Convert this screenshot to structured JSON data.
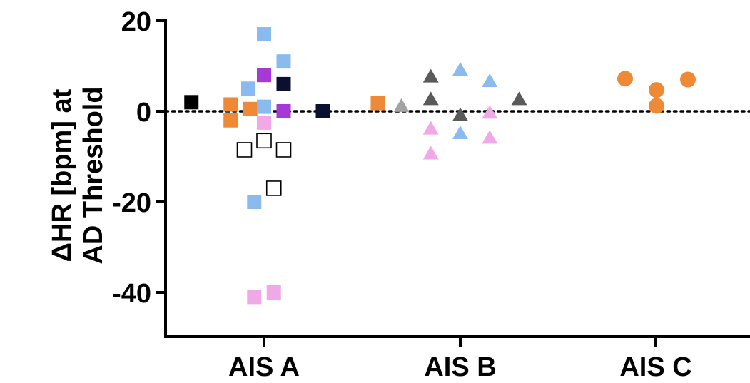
{
  "chart_data": {
    "type": "scatter",
    "title": "",
    "ylabel_lines": [
      "ΔHR [bpm] at",
      "AD Threshold"
    ],
    "xlabel": "",
    "categories": [
      "AIS A",
      "AIS B",
      "AIS C"
    ],
    "ylim": [
      -50,
      20
    ],
    "yticks": [
      20,
      0,
      -20,
      -40
    ],
    "ytick_labels": [
      "20",
      "0",
      "-20",
      "-40"
    ],
    "reference_line": {
      "y": 0,
      "style": "dotted"
    },
    "grid": false,
    "legend": "none",
    "points": [
      {
        "x": 0.63,
        "y": 2,
        "shape": "square",
        "fill": "#000000",
        "stroke": "#000000"
      },
      {
        "x": 0.83,
        "y": 1.5,
        "shape": "square",
        "fill": "#ee8a36",
        "stroke": "#ee8a36"
      },
      {
        "x": 0.83,
        "y": -2,
        "shape": "square",
        "fill": "#ee8a36",
        "stroke": "#ee8a36"
      },
      {
        "x": 0.93,
        "y": 0.5,
        "shape": "square",
        "fill": "#ee8a36",
        "stroke": "#ee8a36"
      },
      {
        "x": 1.58,
        "y": 1.8,
        "shape": "square",
        "fill": "#ee8a36",
        "stroke": "#ee8a36"
      },
      {
        "x": 0.92,
        "y": 5,
        "shape": "square",
        "fill": "#8bbbee",
        "stroke": "#8bbbee"
      },
      {
        "x": 1.0,
        "y": 17,
        "shape": "square",
        "fill": "#8bbbee",
        "stroke": "#8bbbee"
      },
      {
        "x": 1.1,
        "y": 11,
        "shape": "square",
        "fill": "#8bbbee",
        "stroke": "#8bbbee"
      },
      {
        "x": 1.0,
        "y": 1,
        "shape": "square",
        "fill": "#8bbbee",
        "stroke": "#8bbbee"
      },
      {
        "x": 0.95,
        "y": -20,
        "shape": "square",
        "fill": "#8bbbee",
        "stroke": "#8bbbee"
      },
      {
        "x": 1.0,
        "y": 8,
        "shape": "square",
        "fill": "#a538d6",
        "stroke": "#a538d6"
      },
      {
        "x": 1.1,
        "y": 0,
        "shape": "square",
        "fill": "#a538d6",
        "stroke": "#a538d6"
      },
      {
        "x": 1.1,
        "y": 6,
        "shape": "square",
        "fill": "#0b1030",
        "stroke": "#0b1030"
      },
      {
        "x": 1.3,
        "y": 0,
        "shape": "square",
        "fill": "#0b1030",
        "stroke": "#0b1030"
      },
      {
        "x": 1.0,
        "y": -2.5,
        "shape": "square",
        "fill": "#f0a8e6",
        "stroke": "#f0a8e6"
      },
      {
        "x": 0.95,
        "y": -41,
        "shape": "square",
        "fill": "#f0a8e6",
        "stroke": "#f0a8e6"
      },
      {
        "x": 1.05,
        "y": -40,
        "shape": "square",
        "fill": "#f0a8e6",
        "stroke": "#f0a8e6"
      },
      {
        "x": 0.9,
        "y": -8.5,
        "shape": "square",
        "fill": "#ffffff",
        "stroke": "#000000"
      },
      {
        "x": 1.0,
        "y": -6.5,
        "shape": "square",
        "fill": "#ffffff",
        "stroke": "#000000"
      },
      {
        "x": 1.1,
        "y": -8.5,
        "shape": "square",
        "fill": "#ffffff",
        "stroke": "#000000"
      },
      {
        "x": 1.05,
        "y": -17,
        "shape": "square",
        "fill": "#ffffff",
        "stroke": "#000000"
      },
      {
        "x": 1.7,
        "y": 1,
        "shape": "triangle",
        "fill": "#a3a3a3",
        "stroke": "#a3a3a3"
      },
      {
        "x": 1.85,
        "y": 7.5,
        "shape": "triangle",
        "fill": "#5a5a5a",
        "stroke": "#5a5a5a"
      },
      {
        "x": 1.85,
        "y": 2.5,
        "shape": "triangle",
        "fill": "#5a5a5a",
        "stroke": "#5a5a5a"
      },
      {
        "x": 2.0,
        "y": -1,
        "shape": "triangle",
        "fill": "#5a5a5a",
        "stroke": "#5a5a5a"
      },
      {
        "x": 2.3,
        "y": 2.5,
        "shape": "triangle",
        "fill": "#5a5a5a",
        "stroke": "#5a5a5a"
      },
      {
        "x": 2.0,
        "y": 9,
        "shape": "triangle",
        "fill": "#8bbbee",
        "stroke": "#8bbbee"
      },
      {
        "x": 2.15,
        "y": 6.5,
        "shape": "triangle",
        "fill": "#8bbbee",
        "stroke": "#8bbbee"
      },
      {
        "x": 2.0,
        "y": -5,
        "shape": "triangle",
        "fill": "#8bbbee",
        "stroke": "#8bbbee"
      },
      {
        "x": 1.85,
        "y": -4,
        "shape": "triangle",
        "fill": "#f0a8e6",
        "stroke": "#f0a8e6"
      },
      {
        "x": 1.85,
        "y": -9.5,
        "shape": "triangle",
        "fill": "#f0a8e6",
        "stroke": "#f0a8e6"
      },
      {
        "x": 2.15,
        "y": -0.5,
        "shape": "triangle",
        "fill": "#f0a8e6",
        "stroke": "#f0a8e6"
      },
      {
        "x": 2.15,
        "y": -6,
        "shape": "triangle",
        "fill": "#f0a8e6",
        "stroke": "#f0a8e6"
      },
      {
        "x": 2.84,
        "y": 7.2,
        "shape": "circle",
        "fill": "#ee8a36",
        "stroke": "#ee8a36"
      },
      {
        "x": 3.0,
        "y": 4.7,
        "shape": "circle",
        "fill": "#ee8a36",
        "stroke": "#ee8a36"
      },
      {
        "x": 3.0,
        "y": 1.2,
        "shape": "circle",
        "fill": "#ee8a36",
        "stroke": "#ee8a36"
      },
      {
        "x": 3.16,
        "y": 7,
        "shape": "circle",
        "fill": "#ee8a36",
        "stroke": "#ee8a36"
      }
    ]
  }
}
